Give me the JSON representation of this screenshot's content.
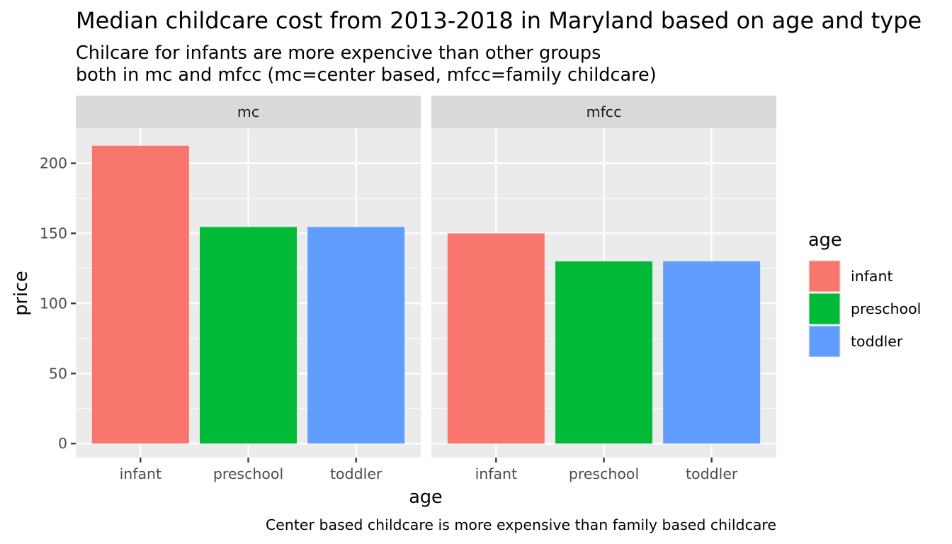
{
  "chart_data": {
    "type": "bar",
    "title": "Median childcare cost from 2013-2018 in Maryland based on age and type",
    "subtitle_lines": [
      "Chilcare for infants are more expencive than other groups",
      "both in mc and mfcc (mc=center based, mfcc=family childcare)"
    ],
    "caption": "Center based childcare is more expensive than family based childcare",
    "xlabel": "age",
    "ylabel": "price",
    "ylim": [
      -10,
      225
    ],
    "yticks": [
      0,
      50,
      100,
      150,
      200
    ],
    "categories": [
      "infant",
      "preschool",
      "toddler"
    ],
    "category_colors": {
      "infant": "#F8766D",
      "preschool": "#00BA38",
      "toddler": "#619CFF"
    },
    "panels": [
      {
        "name": "mc",
        "values": [
          212.5,
          154.5,
          154.5
        ]
      },
      {
        "name": "mfcc",
        "values": [
          150,
          130,
          130
        ]
      }
    ],
    "legend": {
      "title": "age",
      "position": "right",
      "entries": [
        "infant",
        "preschool",
        "toddler"
      ]
    },
    "grid": true
  }
}
